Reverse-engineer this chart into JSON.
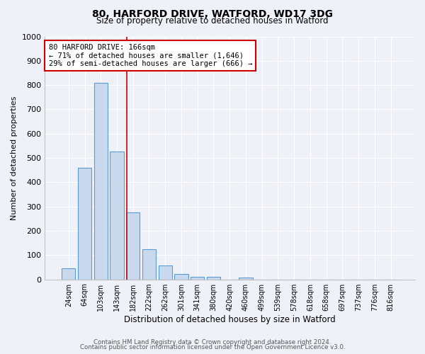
{
  "title": "80, HARFORD DRIVE, WATFORD, WD17 3DG",
  "subtitle": "Size of property relative to detached houses in Watford",
  "xlabel": "Distribution of detached houses by size in Watford",
  "ylabel": "Number of detached properties",
  "bar_color": "#c8d9ed",
  "bar_edge_color": "#5b9bd5",
  "background_color": "#eef2f8",
  "grid_color": "#ffffff",
  "categories": [
    "24sqm",
    "64sqm",
    "103sqm",
    "143sqm",
    "182sqm",
    "222sqm",
    "262sqm",
    "301sqm",
    "341sqm",
    "380sqm",
    "420sqm",
    "460sqm",
    "499sqm",
    "539sqm",
    "578sqm",
    "618sqm",
    "658sqm",
    "697sqm",
    "737sqm",
    "776sqm",
    "816sqm"
  ],
  "values": [
    46,
    460,
    810,
    525,
    275,
    125,
    58,
    22,
    10,
    10,
    0,
    8,
    0,
    0,
    0,
    0,
    0,
    0,
    0,
    0,
    0
  ],
  "ylim": [
    0,
    1000
  ],
  "yticks": [
    0,
    100,
    200,
    300,
    400,
    500,
    600,
    700,
    800,
    900,
    1000
  ],
  "annotation_line1": "80 HARFORD DRIVE: 166sqm",
  "annotation_line2": "← 71% of detached houses are smaller (1,646)",
  "annotation_line3": "29% of semi-detached houses are larger (666) →",
  "annotation_box_facecolor": "#ffffff",
  "annotation_box_edgecolor": "#cc0000",
  "property_line_color": "#cc0000",
  "property_line_x": 3.62,
  "footer_line1": "Contains HM Land Registry data © Crown copyright and database right 2024.",
  "footer_line2": "Contains public sector information licensed under the Open Government Licence v3.0."
}
